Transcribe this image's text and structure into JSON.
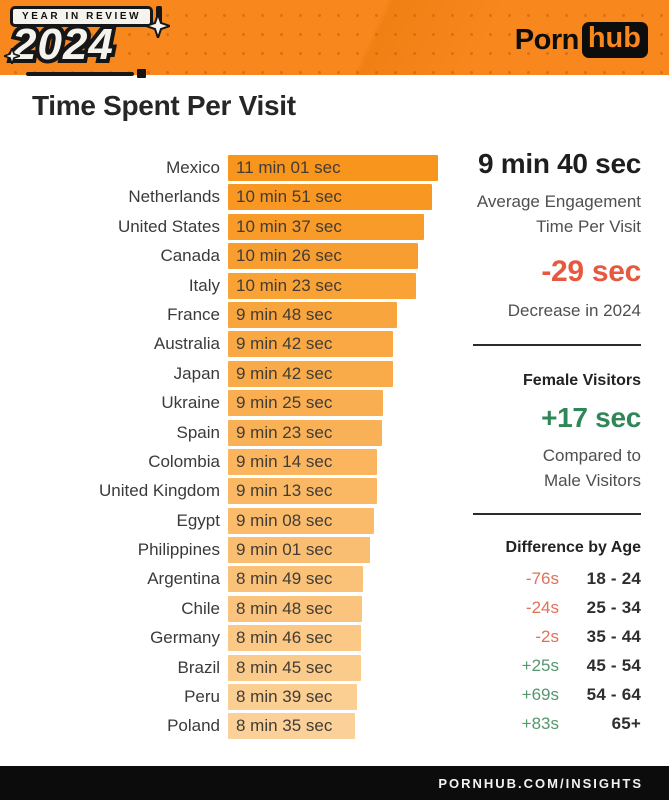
{
  "header": {
    "badge_label": "YEAR IN REVIEW",
    "year": "2024",
    "logo_part1": "Porn",
    "logo_part2": "hub"
  },
  "page_title": "Time Spent Per Visit",
  "chart_data": {
    "type": "bar",
    "orientation": "horizontal",
    "title": "Time Spent Per Visit",
    "unit": "seconds",
    "legend": "none",
    "grid": "off",
    "categories": [
      "Mexico",
      "Netherlands",
      "United States",
      "Canada",
      "Italy",
      "France",
      "Australia",
      "Japan",
      "Ukraine",
      "Spain",
      "Colombia",
      "United Kingdom",
      "Egypt",
      "Philippines",
      "Argentina",
      "Chile",
      "Germany",
      "Brazil",
      "Peru",
      "Poland"
    ],
    "values": [
      661,
      651,
      637,
      626,
      623,
      588,
      582,
      582,
      565,
      563,
      554,
      553,
      548,
      541,
      529,
      528,
      526,
      525,
      519,
      515
    ],
    "value_labels": [
      "11 min 01 sec",
      "10 min 51 sec",
      "10 min 37 sec",
      "10 min 26 sec",
      "10 min 23 sec",
      "9 min 48 sec",
      "9 min 42 sec",
      "9 min 42 sec",
      "9 min 25 sec",
      "9 min 23 sec",
      "9 min 14 sec",
      "9 min 13 sec",
      "9 min 08 sec",
      "9 min 01 sec",
      "8 min 49 sec",
      "8 min 48 sec",
      "8 min 46 sec",
      "8 min 45 sec",
      "8 min 39 sec",
      "8 min 35 sec"
    ]
  },
  "stats": {
    "avg_time_value": "9 min 40 sec",
    "avg_time_caption": "Average Engagement Time Per Visit",
    "change_value": "-29 sec",
    "change_caption": "Decrease in 2024",
    "female_heading": "Female Visitors",
    "female_value": "+17 sec",
    "female_caption": "Compared to Male Visitors"
  },
  "age_section": {
    "heading": "Difference by Age",
    "rows": [
      {
        "diff": "-76s",
        "age": "18 - 24",
        "trend": "negative"
      },
      {
        "diff": "-24s",
        "age": "25 - 34",
        "trend": "negative"
      },
      {
        "diff": "-2s",
        "age": "35 - 44",
        "trend": "negative"
      },
      {
        "diff": "+25s",
        "age": "45 - 54",
        "trend": "positive"
      },
      {
        "diff": "+69s",
        "age": "54 - 64",
        "trend": "positive"
      },
      {
        "diff": "+83s",
        "age": "65+",
        "trend": "positive"
      }
    ]
  },
  "footer": {
    "text": "PORNHUB.COM/INSIGHTS"
  },
  "colors": {
    "header_bg": "#F8871E",
    "bar_start": "#F8951C",
    "bar_end": "#FBD199",
    "negative": "#E6593F",
    "negative_light": "#E1705A",
    "positive": "#2F8757",
    "positive_light": "#57976D"
  }
}
